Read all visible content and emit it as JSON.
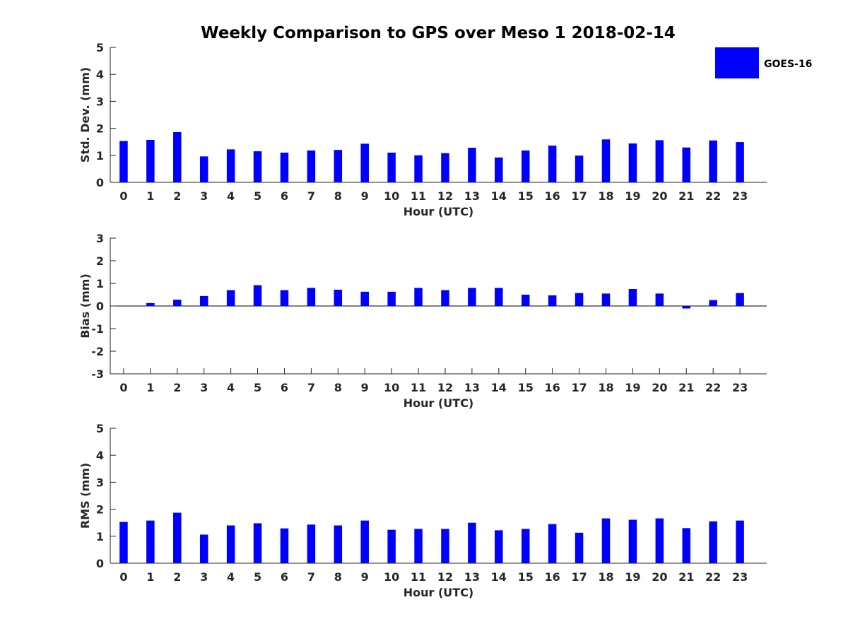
{
  "title": "Weekly Comparison to GPS over Meso 1 2018-02-14",
  "legend": {
    "label": "GOES-16",
    "position": "top-right"
  },
  "colors": {
    "bar": "#0000ff",
    "axis": "#262626",
    "text": "#000000"
  },
  "chart_data": [
    {
      "type": "bar",
      "title": "Weekly Comparison to GPS over Meso 1 2018-02-14",
      "xlabel": "Hour (UTC)",
      "ylabel": "Std. Dev. (mm)",
      "ylim": [
        0,
        5
      ],
      "yticks": [
        "0",
        "1",
        "2",
        "3",
        "4",
        "5"
      ],
      "categories": [
        "0",
        "1",
        "2",
        "3",
        "4",
        "5",
        "6",
        "7",
        "8",
        "9",
        "10",
        "11",
        "12",
        "13",
        "14",
        "15",
        "16",
        "17",
        "18",
        "19",
        "20",
        "21",
        "22",
        "23"
      ],
      "series": [
        {
          "name": "GOES-16",
          "values": [
            1.53,
            1.57,
            1.86,
            0.96,
            1.22,
            1.15,
            1.1,
            1.18,
            1.2,
            1.43,
            1.1,
            1.0,
            1.08,
            1.28,
            0.92,
            1.18,
            1.36,
            0.99,
            1.59,
            1.44,
            1.56,
            1.29,
            1.55,
            1.49
          ]
        }
      ]
    },
    {
      "type": "bar",
      "xlabel": "Hour (UTC)",
      "ylabel": "Bias (mm)",
      "ylim": [
        -3,
        3
      ],
      "yticks": [
        "-3",
        "-2",
        "-1",
        "0",
        "1",
        "2",
        "3"
      ],
      "categories": [
        "0",
        "1",
        "2",
        "3",
        "4",
        "5",
        "6",
        "7",
        "8",
        "9",
        "10",
        "11",
        "12",
        "13",
        "14",
        "15",
        "16",
        "17",
        "18",
        "19",
        "20",
        "21",
        "22",
        "23"
      ],
      "series": [
        {
          "name": "GOES-16",
          "values": [
            0.0,
            0.13,
            0.28,
            0.44,
            0.7,
            0.92,
            0.7,
            0.8,
            0.72,
            0.63,
            0.63,
            0.8,
            0.7,
            0.8,
            0.8,
            0.5,
            0.47,
            0.57,
            0.55,
            0.75,
            0.55,
            -0.11,
            0.26,
            0.57
          ]
        }
      ]
    },
    {
      "type": "bar",
      "xlabel": "Hour (UTC)",
      "ylabel": "RMS (mm)",
      "ylim": [
        0,
        5
      ],
      "yticks": [
        "0",
        "1",
        "2",
        "3",
        "4",
        "5"
      ],
      "categories": [
        "0",
        "1",
        "2",
        "3",
        "4",
        "5",
        "6",
        "7",
        "8",
        "9",
        "10",
        "11",
        "12",
        "13",
        "14",
        "15",
        "16",
        "17",
        "18",
        "19",
        "20",
        "21",
        "22",
        "23"
      ],
      "series": [
        {
          "name": "GOES-16",
          "values": [
            1.53,
            1.58,
            1.87,
            1.06,
            1.4,
            1.48,
            1.29,
            1.43,
            1.4,
            1.58,
            1.24,
            1.27,
            1.27,
            1.5,
            1.22,
            1.27,
            1.45,
            1.13,
            1.66,
            1.61,
            1.66,
            1.3,
            1.55,
            1.58
          ]
        }
      ]
    }
  ]
}
